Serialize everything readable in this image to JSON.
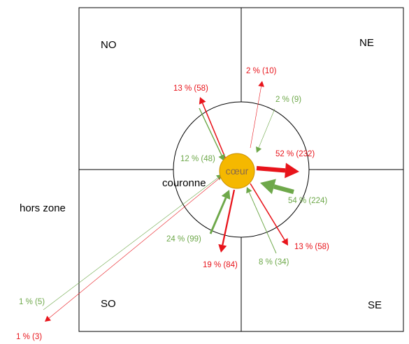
{
  "zones": {
    "no": "NO",
    "ne": "NE",
    "so": "SO",
    "se": "SE",
    "hors_zone": "hors zone",
    "couronne": "couronne",
    "coeur": "cœur"
  },
  "colors": {
    "outflow": "#e8141b",
    "inflow": "#6ea84a",
    "core": "#f5b800",
    "lines": "#000000"
  },
  "flows": [
    {
      "id": "out-no",
      "direction": "out",
      "zone": "NO",
      "label": "13 % (58)",
      "percent": 13,
      "count": 58
    },
    {
      "id": "in-no",
      "direction": "in",
      "zone": "NO",
      "label": "12 % (48)",
      "percent": 12,
      "count": 48
    },
    {
      "id": "out-ne",
      "direction": "out",
      "zone": "NE",
      "label": "2 % (10)",
      "percent": 2,
      "count": 10
    },
    {
      "id": "in-ne",
      "direction": "in",
      "zone": "NE",
      "label": "2 % (9)",
      "percent": 2,
      "count": 9
    },
    {
      "id": "out-couronne",
      "direction": "out",
      "zone": "couronne",
      "label": "52 % (232)",
      "percent": 52,
      "count": 232
    },
    {
      "id": "in-couronne",
      "direction": "in",
      "zone": "couronne",
      "label": "54 % (224)",
      "percent": 54,
      "count": 224
    },
    {
      "id": "out-se",
      "direction": "out",
      "zone": "SE",
      "label": "13 % (58)",
      "percent": 13,
      "count": 58
    },
    {
      "id": "in-se",
      "direction": "in",
      "zone": "SE",
      "label": "8 % (34)",
      "percent": 8,
      "count": 34
    },
    {
      "id": "out-so",
      "direction": "out",
      "zone": "SO",
      "label": "19 % (84)",
      "percent": 19,
      "count": 84
    },
    {
      "id": "in-so",
      "direction": "in",
      "zone": "SO",
      "label": "24 % (99)",
      "percent": 24,
      "count": 99
    },
    {
      "id": "in-hors",
      "direction": "in",
      "zone": "hors zone",
      "label": "1 % (5)",
      "percent": 1,
      "count": 5
    },
    {
      "id": "out-hors",
      "direction": "out",
      "zone": "hors zone",
      "label": "1 % (3)",
      "percent": 1,
      "count": 3
    }
  ]
}
